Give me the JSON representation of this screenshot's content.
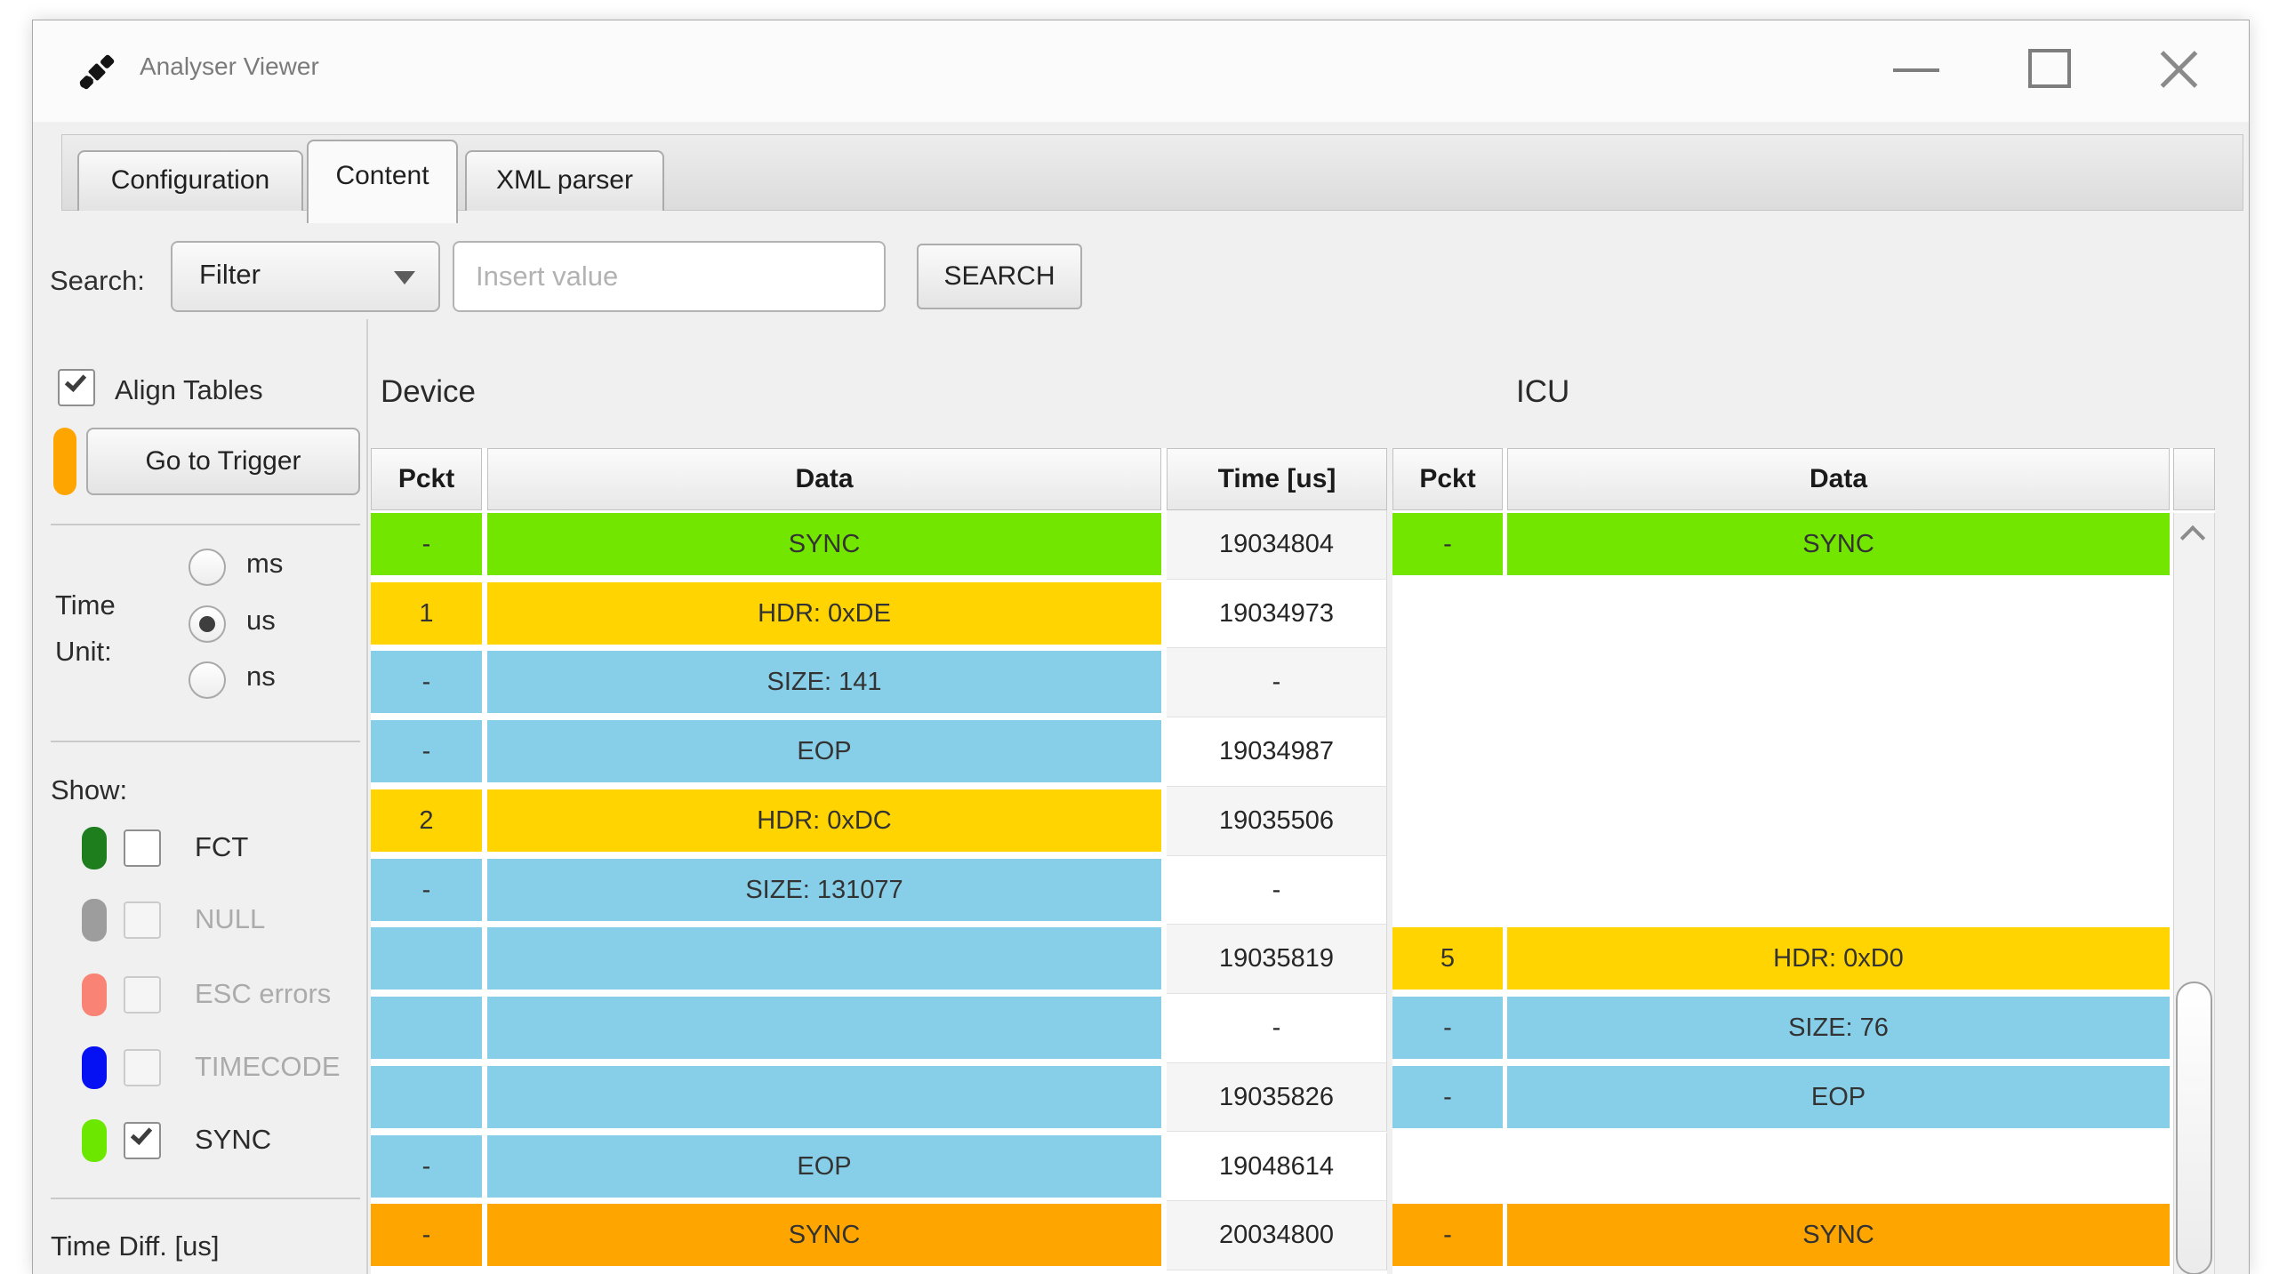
{
  "window": {
    "title": "Analyser Viewer"
  },
  "tabs": [
    {
      "label": "Configuration",
      "active": false
    },
    {
      "label": "Content",
      "active": true
    },
    {
      "label": "XML parser",
      "active": false
    }
  ],
  "search": {
    "label": "Search:",
    "filter_selected": "Filter",
    "input_placeholder": "Insert value",
    "search_button": "SEARCH"
  },
  "sidebar": {
    "align_tables": {
      "label": "Align Tables",
      "checked": true
    },
    "go_to_trigger": {
      "label": "Go to Trigger",
      "marker_color": "#FFA500"
    },
    "time_unit": {
      "label_lines": [
        "Time",
        "Unit:"
      ],
      "options": [
        {
          "label": "ms",
          "selected": false
        },
        {
          "label": "us",
          "selected": true
        },
        {
          "label": "ns",
          "selected": false
        }
      ]
    },
    "show": {
      "label": "Show:",
      "items": [
        {
          "label": "FCT",
          "swatch_color": "#1E7E1E",
          "checked": false,
          "enabled": true
        },
        {
          "label": "NULL",
          "swatch_color": "#9D9D9D",
          "checked": false,
          "enabled": false
        },
        {
          "label": "ESC errors",
          "swatch_color": "#F98476",
          "checked": false,
          "enabled": false
        },
        {
          "label": "TIMECODE",
          "swatch_color": "#0511F2",
          "checked": false,
          "enabled": false
        },
        {
          "label": "SYNC",
          "swatch_color": "#6CE800",
          "checked": true,
          "enabled": true
        }
      ]
    },
    "time_diff_label": "Time Diff. [us]"
  },
  "tables": {
    "device": {
      "title": "Device",
      "columns": [
        "Pckt",
        "Data",
        "Time [us]"
      ],
      "rows": [
        {
          "pckt": "-",
          "data": "SYNC",
          "time": "19034804",
          "color": "green"
        },
        {
          "pckt": "1",
          "data": "HDR: 0xDE",
          "time": "19034973",
          "color": "yellow"
        },
        {
          "pckt": "-",
          "data": "SIZE: 141",
          "time": "-",
          "color": "blue"
        },
        {
          "pckt": "-",
          "data": "EOP",
          "time": "19034987",
          "color": "blue"
        },
        {
          "pckt": "2",
          "data": "HDR: 0xDC",
          "time": "19035506",
          "color": "yellow"
        },
        {
          "pckt": "-",
          "data": "SIZE: 131077",
          "time": "-",
          "color": "blue"
        },
        {
          "pckt": "",
          "data": "",
          "time": "19035819",
          "color": "blue"
        },
        {
          "pckt": "",
          "data": "",
          "time": "-",
          "color": "blue"
        },
        {
          "pckt": "",
          "data": "",
          "time": "19035826",
          "color": "blue"
        },
        {
          "pckt": "-",
          "data": "EOP",
          "time": "19048614",
          "color": "blue"
        },
        {
          "pckt": "-",
          "data": "SYNC",
          "time": "20034800",
          "color": "orange"
        }
      ]
    },
    "icu": {
      "title": "ICU",
      "columns": [
        "Pckt",
        "Data"
      ],
      "rows": [
        {
          "pckt": "-",
          "data": "SYNC",
          "color": "green"
        },
        {
          "pckt": "",
          "data": "",
          "color": ""
        },
        {
          "pckt": "",
          "data": "",
          "color": ""
        },
        {
          "pckt": "",
          "data": "",
          "color": ""
        },
        {
          "pckt": "",
          "data": "",
          "color": ""
        },
        {
          "pckt": "",
          "data": "",
          "color": ""
        },
        {
          "pckt": "5",
          "data": "HDR: 0xD0",
          "color": "yellow"
        },
        {
          "pckt": "-",
          "data": "SIZE: 76",
          "color": "blue"
        },
        {
          "pckt": "-",
          "data": "EOP",
          "color": "blue"
        },
        {
          "pckt": "",
          "data": "",
          "color": ""
        },
        {
          "pckt": "-",
          "data": "SYNC",
          "color": "orange"
        }
      ]
    }
  },
  "colors": {
    "row_green": "#73E600",
    "row_yellow": "#FFD400",
    "row_blue": "#87CEE9",
    "row_orange": "#FFA500",
    "time_stripe": "#f5f5f5"
  }
}
